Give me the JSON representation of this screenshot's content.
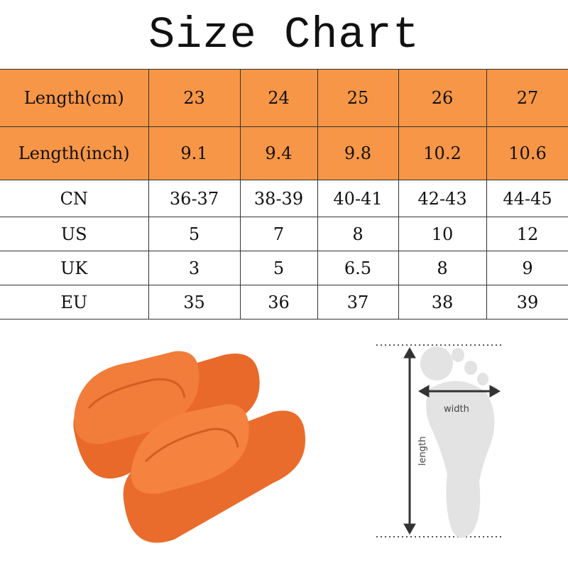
{
  "title": "Size Chart",
  "table": {
    "header_rows": [
      {
        "label": "Length(cm)",
        "values": [
          "23",
          "24",
          "25",
          "26",
          "27"
        ]
      },
      {
        "label": "Length(inch)",
        "values": [
          "9.1",
          "9.4",
          "9.8",
          "10.2",
          "10.6"
        ]
      }
    ],
    "rows": [
      {
        "label": "CN",
        "values": [
          "36-37",
          "38-39",
          "40-41",
          "42-43",
          "44-45"
        ]
      },
      {
        "label": "US",
        "values": [
          "5",
          "7",
          "8",
          "10",
          "12"
        ]
      },
      {
        "label": "UK",
        "values": [
          "3",
          "5",
          "6.5",
          "8",
          "9"
        ]
      },
      {
        "label": "EU",
        "values": [
          "35",
          "36",
          "37",
          "38",
          "39"
        ]
      }
    ]
  },
  "diagram": {
    "width_label": "width",
    "length_label": "length"
  },
  "colors": {
    "header": "#f79646",
    "slipper": "#f07a36",
    "foot": "#e3e3e3"
  }
}
